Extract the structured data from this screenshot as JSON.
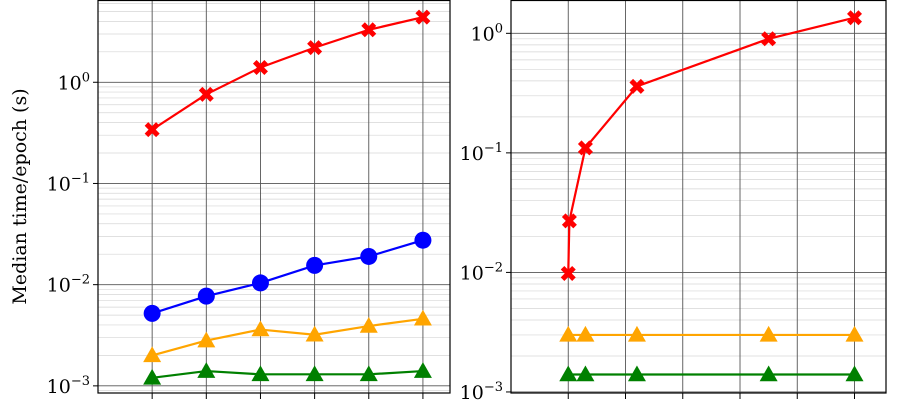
{
  "chart_data": [
    {
      "type": "line",
      "title": "",
      "xlabel": "",
      "ylabel": "Median time/epoch (s)",
      "yscale": "log",
      "ylim": [
        0.00085,
        6.5
      ],
      "yticks": [
        {
          "value": 1,
          "base": "10",
          "exp": "0"
        },
        {
          "value": 0.1,
          "base": "10",
          "exp": "−1"
        },
        {
          "value": 0.01,
          "base": "10",
          "exp": "−2"
        },
        {
          "value": 0.001,
          "base": "10",
          "exp": "−3"
        }
      ],
      "grid": true,
      "series": [
        {
          "marker": "x",
          "color": "#ff0000",
          "x": [
            1,
            2,
            3,
            4,
            5,
            6
          ],
          "values": [
            0.34,
            0.76,
            1.4,
            2.2,
            3.3,
            4.4
          ]
        },
        {
          "marker": "circle",
          "color": "#0000ff",
          "x": [
            1,
            2,
            3,
            4,
            5,
            6
          ],
          "values": [
            0.0052,
            0.0077,
            0.0104,
            0.0155,
            0.019,
            0.0275
          ]
        },
        {
          "marker": "triangle",
          "color": "#ffa500",
          "x": [
            1,
            2,
            3,
            4,
            5,
            6
          ],
          "values": [
            0.002,
            0.0028,
            0.0036,
            0.0032,
            0.0039,
            0.0046
          ]
        },
        {
          "marker": "triangle",
          "color": "#008000",
          "x": [
            1,
            2,
            3,
            4,
            5,
            6
          ],
          "values": [
            0.0012,
            0.0014,
            0.0013,
            0.0013,
            0.0013,
            0.0014
          ]
        }
      ]
    },
    {
      "type": "line",
      "title": "",
      "xlabel": "",
      "ylabel": "",
      "yscale": "log",
      "ylim": [
        0.00098,
        1.9
      ],
      "yticks": [
        {
          "value": 1,
          "base": "10",
          "exp": "0"
        },
        {
          "value": 0.1,
          "base": "10",
          "exp": "−1"
        },
        {
          "value": 0.01,
          "base": "10",
          "exp": "−2"
        },
        {
          "value": 0.001,
          "base": "10",
          "exp": "−3"
        }
      ],
      "grid": true,
      "series": [
        {
          "marker": "x",
          "color": "#ff0000",
          "x": [
            1,
            1.02,
            1.3,
            2.2,
            4.5,
            6
          ],
          "values": [
            0.0098,
            0.027,
            0.11,
            0.36,
            0.9,
            1.35
          ]
        },
        {
          "marker": "triangle",
          "color": "#ffa500",
          "x": [
            1,
            1.3,
            2.2,
            4.5,
            6
          ],
          "values": [
            0.003,
            0.003,
            0.003,
            0.003,
            0.003
          ]
        },
        {
          "marker": "triangle",
          "color": "#008000",
          "x": [
            1,
            1.3,
            2.2,
            4.5,
            6
          ],
          "values": [
            0.0014,
            0.0014,
            0.0014,
            0.0014,
            0.0014
          ]
        }
      ]
    }
  ]
}
